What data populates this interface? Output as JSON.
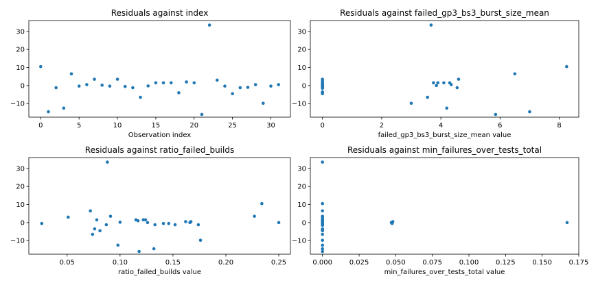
{
  "chart_data": [
    {
      "type": "scatter",
      "title": "Residuals against index",
      "xlabel": "Observation index",
      "ylabel": "",
      "xlim": [
        -1.55,
        32.55
      ],
      "ylim": [
        -17.5,
        36
      ],
      "xticks": [
        0,
        5,
        10,
        15,
        20,
        25,
        30
      ],
      "xtick_labels": [
        "0",
        "5",
        "10",
        "15",
        "20",
        "25",
        "30"
      ],
      "yticks": [
        -10,
        0,
        10,
        20,
        30
      ],
      "ytick_labels": [
        "−10",
        "0",
        "10",
        "20",
        "30"
      ],
      "grid": false,
      "color": "#1f77b4",
      "x": [
        0,
        1,
        2,
        3,
        4,
        5,
        6,
        7,
        8,
        9,
        10,
        11,
        12,
        13,
        14,
        15,
        16,
        17,
        18,
        19,
        20,
        21,
        22,
        23,
        24,
        25,
        26,
        27,
        28,
        29,
        30,
        31
      ],
      "y": [
        10.5,
        -14.5,
        -1.2,
        -12.5,
        6.5,
        -0.3,
        0.5,
        3.5,
        0.2,
        -0.3,
        3.5,
        -0.5,
        -1.2,
        -6.5,
        -0.2,
        1.5,
        1.5,
        1.5,
        -4,
        2,
        1.5,
        -16,
        33.5,
        3,
        -0.3,
        -4.5,
        -1.2,
        -1,
        0.5,
        -9.8,
        -0.3,
        0.5
      ]
    },
    {
      "type": "scatter",
      "title": "Residuals against failed_gp3_bs3_burst_size_mean",
      "xlabel": "failed_gp3_bs3_burst_size_mean value",
      "ylabel": "",
      "xlim": [
        -0.41,
        8.66
      ],
      "ylim": [
        -17.5,
        36
      ],
      "xticks": [
        0,
        2,
        4,
        6,
        8
      ],
      "xtick_labels": [
        "0",
        "2",
        "4",
        "6",
        "8"
      ],
      "yticks": [
        -10,
        0,
        10,
        20,
        30
      ],
      "ytick_labels": [
        "−10",
        "0",
        "10",
        "20",
        "30"
      ],
      "grid": false,
      "color": "#1f77b4",
      "x": [
        0,
        0,
        0,
        0,
        0,
        0,
        0,
        0,
        0,
        0,
        0,
        0,
        0,
        0,
        3.0,
        3.55,
        3.67,
        3.75,
        3.85,
        3.9,
        4.1,
        4.2,
        4.3,
        4.35,
        4.55,
        4.6,
        5.85,
        6.5,
        7.0,
        8.25
      ],
      "y": [
        3.5,
        2.5,
        1.5,
        1,
        0.5,
        0.2,
        -0.2,
        -0.5,
        -1,
        -1.2,
        -1.5,
        -3.5,
        -4,
        -4.5,
        -9.8,
        -6.5,
        33.5,
        1.5,
        0,
        1.5,
        1.5,
        -12.5,
        1.5,
        0.5,
        -1.2,
        3.5,
        -16,
        6.5,
        -14.5,
        10.5
      ]
    },
    {
      "type": "scatter",
      "title": "Residuals against ratio_failed_builds",
      "xlabel": "ratio_failed_builds value",
      "ylabel": "",
      "xlim": [
        0.0138,
        0.261
      ],
      "ylim": [
        -17.5,
        36
      ],
      "xticks": [
        0.05,
        0.1,
        0.15,
        0.2,
        0.25
      ],
      "xtick_labels": [
        "0.05",
        "0.10",
        "0.15",
        "0.20",
        "0.25"
      ],
      "yticks": [
        -10,
        0,
        10,
        20,
        30
      ],
      "ytick_labels": [
        "−10",
        "0",
        "10",
        "20",
        "30"
      ],
      "grid": false,
      "color": "#1f77b4",
      "x": [
        0.026,
        0.051,
        0.072,
        0.074,
        0.076,
        0.078,
        0.081,
        0.087,
        0.088,
        0.091,
        0.098,
        0.1,
        0.115,
        0.117,
        0.118,
        0.122,
        0.124,
        0.126,
        0.132,
        0.133,
        0.141,
        0.146,
        0.152,
        0.162,
        0.166,
        0.167,
        0.174,
        0.176,
        0.227,
        0.234,
        0.25
      ],
      "y": [
        -0.5,
        3,
        6.5,
        -6.5,
        -3.5,
        1.5,
        -4.5,
        -1.2,
        33.5,
        3.5,
        -12.5,
        0.2,
        1.5,
        1,
        -16,
        1.5,
        1.5,
        0,
        -14.5,
        -1.2,
        -0.5,
        -0.5,
        -1.2,
        0.5,
        0,
        0.5,
        -1.2,
        -9.8,
        3.5,
        10.5,
        0
      ]
    },
    {
      "type": "scatter",
      "title": "Residuals against min_failures_over_tests_total",
      "xlabel": "min_failures_over_tests_total value",
      "ylabel": "",
      "xlim": [
        -0.0083,
        0.175
      ],
      "ylim": [
        -17.5,
        36
      ],
      "xticks": [
        0.0,
        0.025,
        0.05,
        0.075,
        0.1,
        0.125,
        0.15,
        0.175
      ],
      "xtick_labels": [
        "0.000",
        "0.025",
        "0.050",
        "0.075",
        "0.100",
        "0.125",
        "0.150",
        "0.175"
      ],
      "yticks": [
        -10,
        0,
        10,
        20,
        30
      ],
      "ytick_labels": [
        "−10",
        "0",
        "10",
        "20",
        "30"
      ],
      "grid": false,
      "color": "#1f77b4",
      "x": [
        0,
        0,
        0,
        0,
        0,
        0,
        0,
        0,
        0,
        0,
        0,
        0,
        0,
        0,
        0,
        0,
        0,
        0,
        0,
        0,
        0,
        0,
        0,
        0,
        0,
        0,
        0.047,
        0.0475,
        0.048,
        0.0475,
        0.167
      ],
      "y": [
        33.5,
        10.5,
        6.5,
        3.5,
        3,
        2,
        1.5,
        1,
        0.5,
        0.2,
        0,
        -0.3,
        -0.5,
        -1,
        -1.2,
        -1.5,
        -3.5,
        -4,
        -4.5,
        -6.5,
        -9.8,
        -12.5,
        -14.5,
        -16,
        1.5,
        -1.2,
        0,
        -0.5,
        0.5,
        -0.2,
        0
      ]
    }
  ]
}
